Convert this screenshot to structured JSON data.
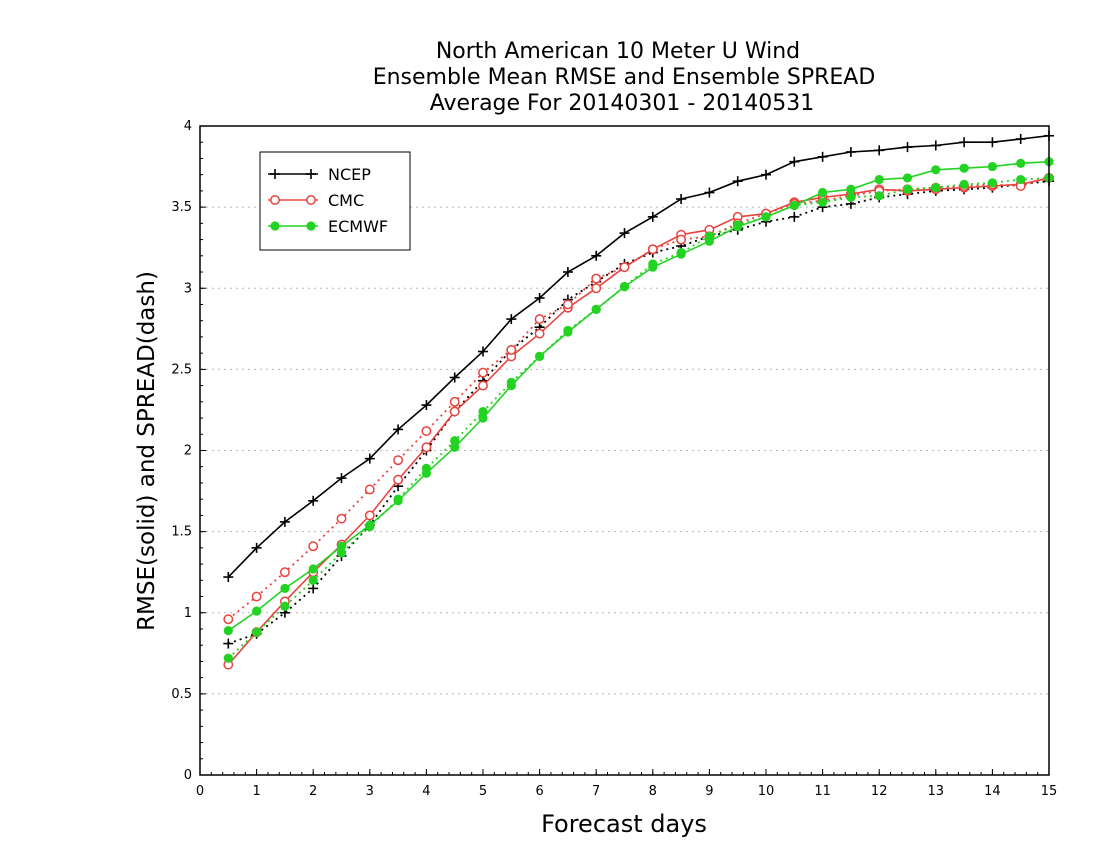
{
  "colors": {
    "NCEP": "#000000",
    "CMC": "#e8433f",
    "ECMWF": "#22d322",
    "grid": "#b8b8b8"
  },
  "chart_data": {
    "type": "line",
    "title": [
      "North American 10 Meter U Wind",
      "Ensemble Mean RMSE and Ensemble SPREAD",
      "Average For 20140301 - 20140531"
    ],
    "xlabel": "Forecast days",
    "ylabel": "RMSE(solid) and SPREAD(dash)",
    "xlim": [
      0,
      15
    ],
    "ylim": [
      0,
      4
    ],
    "xticks": [
      "0",
      "1",
      "2",
      "3",
      "4",
      "5",
      "6",
      "7",
      "8",
      "9",
      "10",
      "11",
      "12",
      "13",
      "14",
      "15"
    ],
    "yticks": [
      "0",
      "0.5",
      "1",
      "1.5",
      "2",
      "2.5",
      "3",
      "3.5",
      "4"
    ],
    "grid": "horizontal dotted",
    "legend_position": "top-left",
    "x": [
      0.5,
      1,
      1.5,
      2,
      2.5,
      3,
      3.5,
      4,
      4.5,
      5,
      5.5,
      6,
      6.5,
      7,
      7.5,
      8,
      8.5,
      9,
      9.5,
      10,
      10.5,
      11,
      11.5,
      12,
      12.5,
      13,
      13.5,
      14,
      14.5,
      15
    ],
    "series": [
      {
        "name": "NCEP",
        "style": "solid",
        "marker": "plus",
        "values": [
          1.22,
          1.4,
          1.56,
          1.69,
          1.83,
          1.95,
          2.13,
          2.28,
          2.45,
          2.61,
          2.81,
          2.94,
          3.1,
          3.2,
          3.34,
          3.44,
          3.55,
          3.59,
          3.66,
          3.7,
          3.78,
          3.81,
          3.84,
          3.85,
          3.87,
          3.88,
          3.9,
          3.9,
          3.92,
          3.94
        ]
      },
      {
        "style": "dash",
        "marker": "plus",
        "values": [
          0.81,
          0.87,
          1.0,
          1.15,
          1.35,
          1.54,
          1.78,
          2.0,
          2.24,
          2.43,
          2.62,
          2.76,
          2.93,
          3.04,
          3.15,
          3.22,
          3.26,
          3.32,
          3.36,
          3.41,
          3.44,
          3.5,
          3.52,
          3.56,
          3.58,
          3.6,
          3.61,
          3.62,
          3.64,
          3.66
        ]
      },
      {
        "name": "CMC",
        "style": "solid",
        "marker": "open-circle",
        "values": [
          0.68,
          0.88,
          1.07,
          1.25,
          1.42,
          1.6,
          1.82,
          2.02,
          2.24,
          2.4,
          2.58,
          2.72,
          2.88,
          3.0,
          3.13,
          3.24,
          3.33,
          3.36,
          3.44,
          3.46,
          3.53,
          3.56,
          3.58,
          3.61,
          3.6,
          3.61,
          3.62,
          3.63,
          3.64,
          3.68
        ]
      },
      {
        "style": "dash",
        "marker": "open-circle",
        "values": [
          0.96,
          1.1,
          1.25,
          1.41,
          1.58,
          1.76,
          1.94,
          2.12,
          2.3,
          2.48,
          2.62,
          2.81,
          2.9,
          3.06,
          3.13,
          3.24,
          3.3,
          3.32,
          3.4,
          3.46,
          3.52,
          3.54,
          3.57,
          3.6,
          3.61,
          3.62,
          3.63,
          3.64,
          3.63,
          3.68
        ]
      },
      {
        "name": "ECMWF",
        "style": "solid",
        "marker": "filled-circle",
        "values": [
          0.89,
          1.01,
          1.15,
          1.27,
          1.41,
          1.54,
          1.69,
          1.86,
          2.02,
          2.2,
          2.4,
          2.58,
          2.73,
          2.87,
          3.01,
          3.13,
          3.21,
          3.29,
          3.38,
          3.44,
          3.51,
          3.59,
          3.61,
          3.67,
          3.68,
          3.73,
          3.74,
          3.75,
          3.77,
          3.78
        ]
      },
      {
        "style": "dash",
        "marker": "filled-circle",
        "values": [
          0.72,
          0.88,
          1.04,
          1.2,
          1.37,
          1.53,
          1.7,
          1.89,
          2.06,
          2.24,
          2.42,
          2.58,
          2.74,
          2.87,
          3.01,
          3.15,
          3.22,
          3.32,
          3.39,
          3.44,
          3.51,
          3.53,
          3.56,
          3.57,
          3.61,
          3.62,
          3.64,
          3.65,
          3.67,
          3.68
        ]
      }
    ]
  }
}
